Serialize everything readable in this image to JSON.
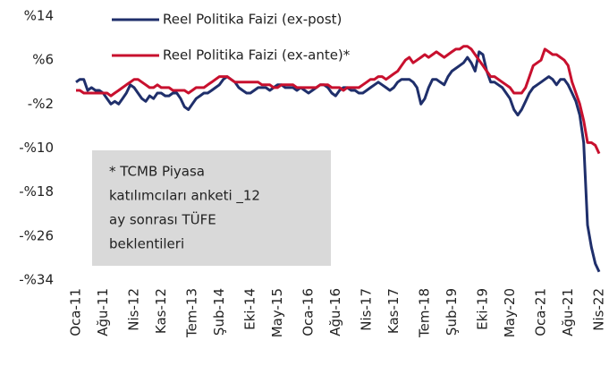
{
  "chart_data": {
    "type": "line",
    "categories": [
      "Oca-11",
      null,
      null,
      null,
      null,
      null,
      null,
      "Ağu-11",
      null,
      null,
      null,
      null,
      null,
      null,
      null,
      "Nis-12",
      null,
      null,
      null,
      null,
      null,
      null,
      "Kas-12",
      null,
      null,
      null,
      null,
      null,
      null,
      null,
      "Tem-13",
      null,
      null,
      null,
      null,
      null,
      null,
      "Şub-14",
      null,
      null,
      null,
      null,
      null,
      null,
      null,
      "Eki-14",
      null,
      null,
      null,
      null,
      null,
      null,
      "May-15",
      null,
      null,
      null,
      null,
      null,
      null,
      null,
      "Oca-16",
      null,
      null,
      null,
      null,
      null,
      null,
      "Ağu-16",
      null,
      null,
      null,
      null,
      null,
      null,
      null,
      "Nis-17",
      null,
      null,
      null,
      null,
      null,
      null,
      "Kas-17",
      null,
      null,
      null,
      null,
      null,
      null,
      null,
      "Tem-18",
      null,
      null,
      null,
      null,
      null,
      null,
      "Şub-19",
      null,
      null,
      null,
      null,
      null,
      null,
      null,
      "Eki-19",
      null,
      null,
      null,
      null,
      null,
      null,
      "May-20",
      null,
      null,
      null,
      null,
      null,
      null,
      null,
      "Oca-21",
      null,
      null,
      null,
      null,
      null,
      null,
      "Ağu-21",
      null,
      null,
      null,
      null,
      null,
      null,
      null,
      "Nis-22"
    ],
    "series": [
      {
        "name": "Reel Politika Faizi (ex-post)",
        "color": "#1f2f6b",
        "values": [
          2,
          2.5,
          2.5,
          0.5,
          1,
          0.5,
          0.5,
          0,
          -1,
          -2,
          -1.5,
          -2,
          -1,
          0,
          1.5,
          1,
          0,
          -1,
          -1.5,
          -0.5,
          -1,
          0,
          0,
          -0.5,
          -0.5,
          0,
          0,
          -1,
          -2.5,
          -3,
          -2,
          -1,
          -0.5,
          0,
          0,
          0.5,
          1,
          1.5,
          2.5,
          3,
          2.5,
          2,
          1,
          0.5,
          0,
          0,
          0.5,
          1,
          1,
          1,
          0.5,
          1,
          1.5,
          1.5,
          1,
          1,
          1,
          0.5,
          1,
          0.5,
          0,
          0.5,
          1,
          1.5,
          1.5,
          1,
          0,
          -0.5,
          0.5,
          1,
          1,
          0.5,
          0.5,
          0,
          0,
          0.5,
          1,
          1.5,
          2,
          1.5,
          1,
          0.5,
          1,
          2,
          2.5,
          2.5,
          2.5,
          2,
          1,
          -2,
          -1,
          1,
          2.5,
          2.5,
          2,
          1.5,
          3,
          4,
          4.5,
          5,
          5.5,
          6.5,
          5.5,
          4,
          7.5,
          7,
          4,
          2,
          2,
          1.5,
          1,
          0,
          -1,
          -3,
          -4,
          -3,
          -1.5,
          0,
          1,
          1.5,
          2,
          2.5,
          3,
          2.5,
          1.5,
          2.5,
          2.5,
          1.5,
          0,
          -1.5,
          -4,
          -9,
          -24,
          -28,
          -31,
          -32.5
        ]
      },
      {
        "name": "Reel Politika Faizi (ex-ante)*",
        "color": "#c8102e",
        "values": [
          0.5,
          0.5,
          0,
          0,
          0,
          0,
          0,
          0,
          0,
          -0.5,
          0,
          0.5,
          1,
          1.5,
          2,
          2.5,
          2.5,
          2,
          1.5,
          1,
          1,
          1.5,
          1,
          1,
          1,
          0.5,
          0.5,
          0.5,
          0.5,
          0,
          0.5,
          1,
          1,
          1,
          1.5,
          2,
          2.5,
          3,
          3,
          3,
          2.5,
          2,
          2,
          2,
          2,
          2,
          2,
          2,
          1.5,
          1.5,
          1.5,
          1,
          1,
          1.5,
          1.5,
          1.5,
          1.5,
          1,
          1,
          1,
          1,
          1,
          1,
          1.5,
          1.5,
          1.5,
          1,
          1,
          1,
          0.5,
          1,
          1,
          1,
          1,
          1.5,
          2,
          2.5,
          2.5,
          3,
          3,
          2.5,
          3,
          3.5,
          4,
          5,
          6,
          6.5,
          5.5,
          6,
          6.5,
          7,
          6.5,
          7,
          7.5,
          7,
          6.5,
          7,
          7.5,
          8,
          8,
          8.5,
          8.5,
          8,
          7,
          6,
          5,
          4,
          3,
          3,
          2.5,
          2,
          1.5,
          1,
          0,
          0,
          0,
          1,
          3,
          5,
          5.5,
          6,
          8,
          7.5,
          7,
          7,
          6.5,
          6,
          5,
          2,
          0,
          -2,
          -5,
          -9,
          -9,
          -9.5,
          -11
        ]
      }
    ],
    "ylim": [
      -34,
      14
    ],
    "yticks": [
      {
        "value": 14,
        "label": "%14"
      },
      {
        "value": 6,
        "label": "%6"
      },
      {
        "value": -2,
        "label": "-%2"
      },
      {
        "value": -10,
        "label": "-%10"
      },
      {
        "value": -18,
        "label": "-%18"
      },
      {
        "value": -26,
        "label": "-%26"
      },
      {
        "value": -34,
        "label": "-%34"
      }
    ],
    "annotation": [
      "* TCMB Piyasa",
      "katılımcıları anketi _12",
      "ay sonrası TÜFE",
      "beklentileri"
    ]
  }
}
